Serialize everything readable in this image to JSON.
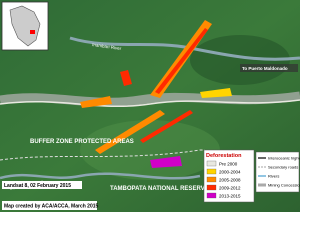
{
  "map": {
    "labels": {
      "river_north": "Inambari River",
      "destination": "To Puerto Maldonado",
      "buffer_zone": "BUFFER ZONE PROTECTED AREAS",
      "reserve": "TAMBOPATA NATIONAL RESERVE",
      "river_south": "Malinowski River"
    },
    "source": "Landsat 8, 02 February 2015",
    "credit": "Map created by ACA/ACCA, March 2015"
  },
  "legend_deforestation": {
    "title": "Deforestation",
    "items": [
      {
        "label": "Pre 2000",
        "color": "#e8e8e0"
      },
      {
        "label": "2000-2004",
        "color": "#ffd400"
      },
      {
        "label": "2005-2008",
        "color": "#ff8a00"
      },
      {
        "label": "2009-2012",
        "color": "#ff2a00"
      },
      {
        "label": "2013-2015",
        "color": "#d000c8"
      }
    ]
  },
  "legend_features": {
    "items": [
      {
        "label": "Interoceanic highway"
      },
      {
        "label": "Secondary roads"
      },
      {
        "label": "Rivers"
      },
      {
        "label": "Mining Concession"
      }
    ]
  }
}
